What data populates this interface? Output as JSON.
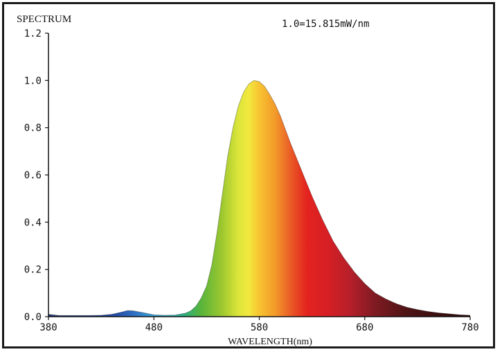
{
  "chart_data": {
    "type": "area",
    "title": "SPECTRUM",
    "annotation": "1.0=15.815mW/nm",
    "xlabel": "WAVELENGTH(nm)",
    "ylabel": "",
    "xlim": [
      380,
      780
    ],
    "ylim": [
      0,
      1.2
    ],
    "x_ticks": [
      "380",
      "480",
      "580",
      "680",
      "780"
    ],
    "y_ticks": [
      "0.0",
      "0.2",
      "0.4",
      "0.6",
      "0.8",
      "1.0",
      "1.2"
    ],
    "grid": false,
    "fill": "spectral-color-gradient",
    "x": [
      380,
      390,
      400,
      410,
      420,
      430,
      440,
      450,
      455,
      460,
      470,
      480,
      490,
      500,
      510,
      515,
      520,
      525,
      530,
      535,
      540,
      545,
      550,
      555,
      560,
      565,
      570,
      575,
      580,
      585,
      590,
      595,
      600,
      605,
      610,
      620,
      630,
      640,
      650,
      660,
      670,
      680,
      690,
      700,
      710,
      720,
      730,
      740,
      750,
      760,
      770,
      780
    ],
    "values": [
      0.01,
      0.005,
      0.005,
      0.005,
      0.005,
      0.006,
      0.01,
      0.02,
      0.026,
      0.025,
      0.017,
      0.008,
      0.006,
      0.007,
      0.015,
      0.025,
      0.045,
      0.08,
      0.13,
      0.22,
      0.36,
      0.52,
      0.68,
      0.8,
      0.89,
      0.95,
      0.985,
      1.0,
      0.995,
      0.975,
      0.94,
      0.9,
      0.85,
      0.79,
      0.73,
      0.62,
      0.51,
      0.41,
      0.32,
      0.25,
      0.19,
      0.14,
      0.1,
      0.075,
      0.055,
      0.04,
      0.03,
      0.022,
      0.016,
      0.012,
      0.008,
      0.006
    ]
  }
}
